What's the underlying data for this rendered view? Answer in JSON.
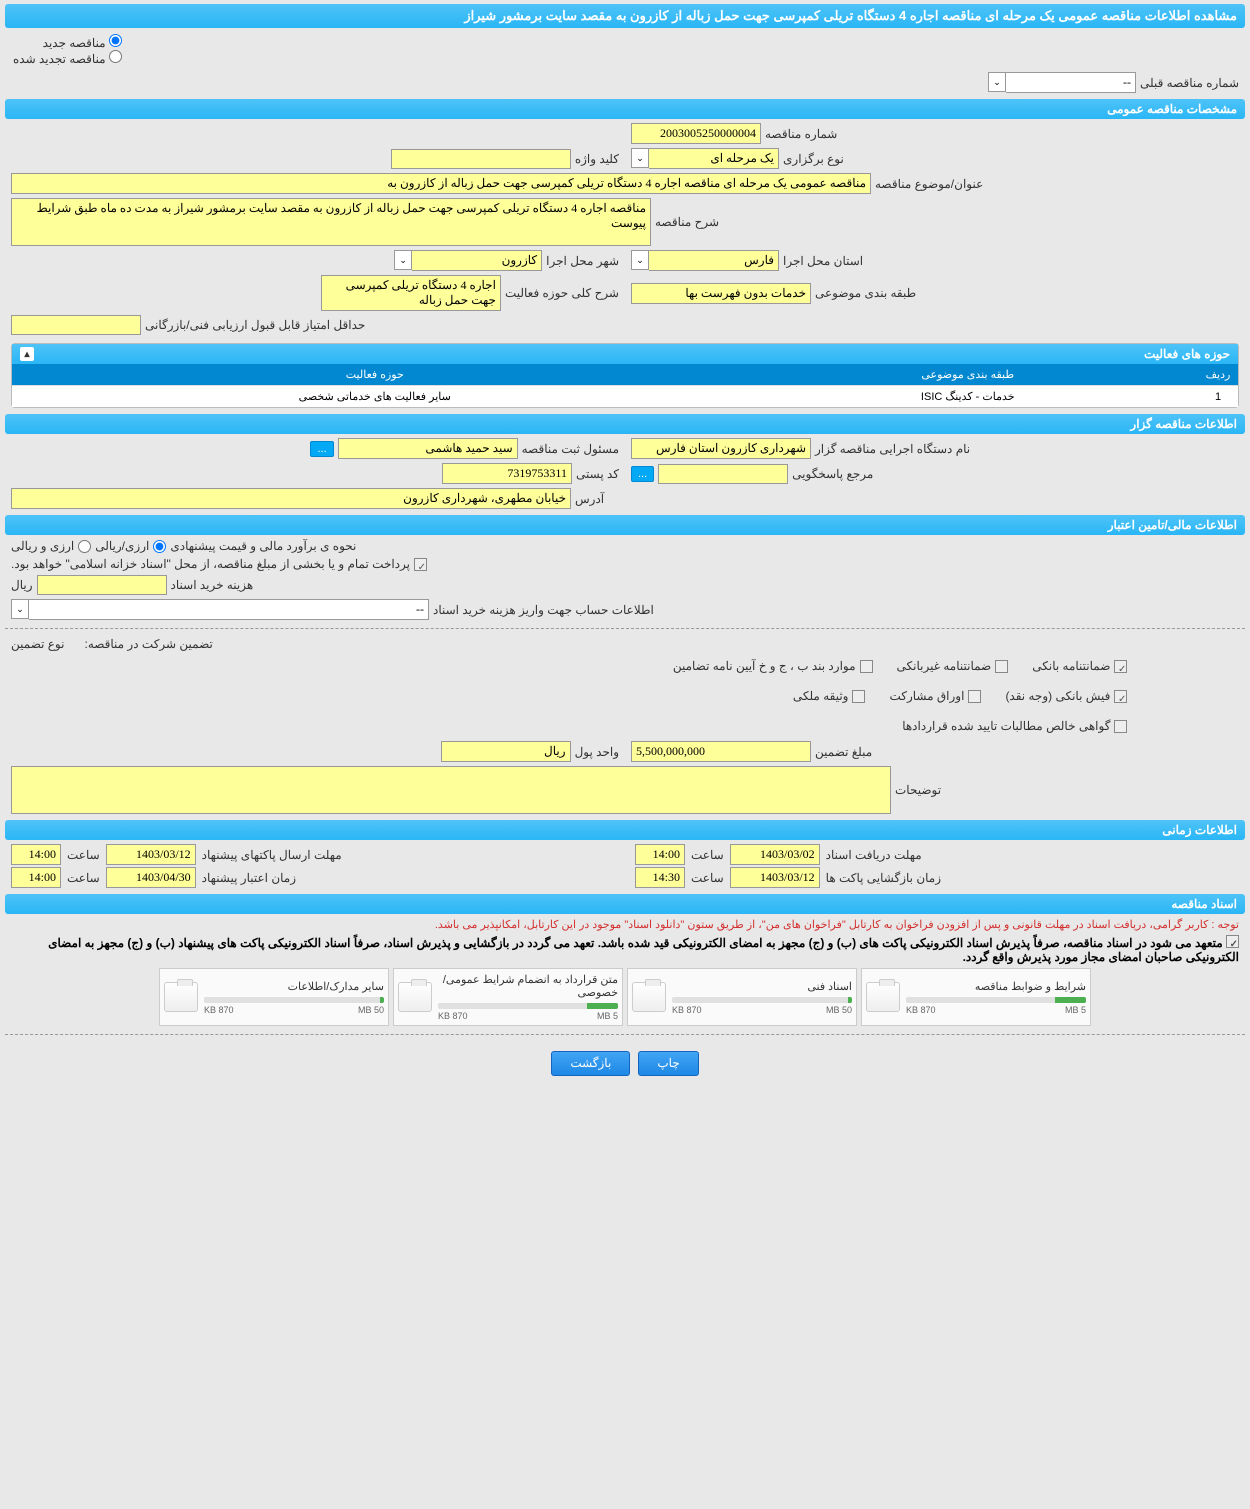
{
  "header": {
    "title": "مشاهده اطلاعات مناقصه عمومی یک مرحله ای مناقصه اجاره 4 دستگاه تریلی کمپرسی جهت حمل زباله از کازرون به مقصد سایت برمشور شیراز"
  },
  "radio": {
    "new_tender": "مناقصه جدید",
    "renewed_tender": "مناقصه تجدید شده",
    "prev_number_label": "شماره مناقصه قبلی",
    "prev_number_value": "--"
  },
  "sections": {
    "general_spec": "مشخصات مناقصه عمومی",
    "activity_fields": "حوزه های فعالیت",
    "tenderer_info": "اطلاعات مناقصه گزار",
    "financial_info": "اطلاعات مالی/تامین اعتبار",
    "time_info": "اطلاعات زمانی",
    "tender_docs": "اسناد مناقصه"
  },
  "general": {
    "tender_number_label": "شماره مناقصه",
    "tender_number": "2003005250000004",
    "holding_type_label": "نوع برگزاری",
    "holding_type": "یک مرحله ای",
    "keyword_label": "کلید واژه",
    "keyword": "",
    "subject_label": "عنوان/موضوع مناقصه",
    "subject": "مناقصه عمومی یک مرحله ای مناقصه اجاره 4 دستگاه  تریلی کمپرسی جهت حمل زباله از کازرون به",
    "desc_label": "شرح مناقصه",
    "desc": "مناقصه اجاره 4 دستگاه  تریلی کمپرسی جهت حمل زباله از کازرون به مقصد سایت برمشور شیراز به مدت ده ماه طبق شرایط پیوست",
    "province_label": "استان محل اجرا",
    "province": "فارس",
    "city_label": "شهر محل اجرا",
    "city": "کازرون",
    "subject_class_label": "طبقه بندی موضوعی",
    "subject_class": "خدمات بدون فهرست بها",
    "activity_scope_label": "شرح کلی حوزه فعالیت",
    "activity_scope": "اجاره 4 دستگاه  تریلی کمپرسی جهت حمل زباله",
    "min_score_label": "حداقل امتیاز قابل قبول ارزیابی فنی/بازرگانی",
    "min_score": ""
  },
  "activity_table": {
    "cols": {
      "row": "ردیف",
      "class": "طبقه بندی موضوعی",
      "field": "حوزه فعالیت"
    },
    "row1": {
      "idx": "1",
      "class": "خدمات - کدینگ ISIC",
      "field": "سایر فعالیت های خدماتی شخصی"
    }
  },
  "tenderer": {
    "exec_label": "نام دستگاه اجرایی مناقصه گزار",
    "exec": "شهرداری کازرون استان فارس",
    "responsible_label": "مسئول ثبت مناقصه",
    "responsible": "سید حمید هاشمی",
    "more_btn": "...",
    "response_ref_label": "مرجع پاسخگویی",
    "response_ref": "",
    "postal_label": "کد پستی",
    "postal": "7319753311",
    "address_label": "آدرس",
    "address": "خیابان مطهری، شهرداری کازرون"
  },
  "financial": {
    "estimate_label": "نحوه ی برآورد مالی و قیمت پیشنهادی",
    "rial_currency": "ارزی/ریالی",
    "foreign_rial": "ارزی و ریالی",
    "payment_note": "پرداخت تمام و یا بخشی از مبلغ مناقصه، از محل \"اسناد خزانه اسلامی\" خواهد بود.",
    "doc_cost_label": "هزینه خرید اسناد",
    "doc_cost": "",
    "rial_unit": "ریال",
    "account_label": "اطلاعات حساب جهت واریز هزینه خرید اسناد",
    "account_value": "--",
    "guarantee_in_label": "تضمین شرکت در مناقصه:",
    "guarantee_type_label": "نوع تضمین",
    "chk_bank_guarantee": "ضمانتنامه بانکی",
    "chk_nonbank_guarantee": "ضمانتنامه غیربانکی",
    "chk_cases": "موارد بند ب ، ج و خ آیین نامه تضامین",
    "chk_bank_receipt": "فیش بانکی (وجه نقد)",
    "chk_participation": "اوراق مشارکت",
    "chk_property": "وثیقه ملکی",
    "chk_net_claims": "گواهی خالص مطالبات تایید شده قراردادها",
    "guarantee_amount_label": "مبلغ تضمین",
    "guarantee_amount": "5,500,000,000",
    "currency_unit_label": "واحد پول",
    "currency_unit": "ریال",
    "notes_label": "توضیحات",
    "notes": ""
  },
  "time": {
    "receive_deadline_label": "مهلت دریافت اسناد",
    "receive_date": "1403/03/02",
    "receive_time": "14:00",
    "send_deadline_label": "مهلت ارسال پاکتهای پیشنهاد",
    "send_date": "1403/03/12",
    "send_time": "14:00",
    "open_time_label": "زمان بازگشایی پاکت ها",
    "open_date": "1403/03/12",
    "open_time": "14:30",
    "validity_label": "زمان اعتبار پیشنهاد",
    "validity_date": "1403/04/30",
    "validity_time": "14:00",
    "hour_label": "ساعت"
  },
  "docs": {
    "notice1": "توجه : کاربر گرامی، دریافت اسناد در مهلت قانونی و پس از افزودن فراخوان به کارتابل \"فراخوان های من\"، از طریق ستون \"دانلود اسناد\" موجود در این کارتابل، امکانپذیر می باشد.",
    "notice2": "متعهد می شود در اسناد مناقصه، صرفاً پذیرش اسناد الکترونیکی پاکت های (ب) و (ج) مجهز به امضای الکترونیکی قید شده باشد. تعهد می گردد در بازگشایی و پذیرش اسناد، صرفاً اسناد الکترونیکی پاکت های پیشنهاد (ب) و (ج) مجهز به امضای الکترونیکی صاحبان امضای مجاز مورد پذیرش واقع گردد.",
    "files": [
      {
        "title": "شرایط و ضوابط مناقصه",
        "size": "870 KB",
        "cap": "5 MB",
        "pct": 17
      },
      {
        "title": "اسناد فنی",
        "size": "870 KB",
        "cap": "50 MB",
        "pct": 2
      },
      {
        "title": "متن قرارداد به انضمام شرایط عمومی/خصوصی",
        "size": "870 KB",
        "cap": "5 MB",
        "pct": 17
      },
      {
        "title": "سایر مدارک/اطلاعات",
        "size": "870 KB",
        "cap": "50 MB",
        "pct": 2
      }
    ]
  },
  "buttons": {
    "print": "چاپ",
    "back": "بازگشت"
  },
  "style": {
    "primary_color": "#29b6f6",
    "field_color": "#ffff99",
    "bg_color": "#e8e8e8"
  }
}
